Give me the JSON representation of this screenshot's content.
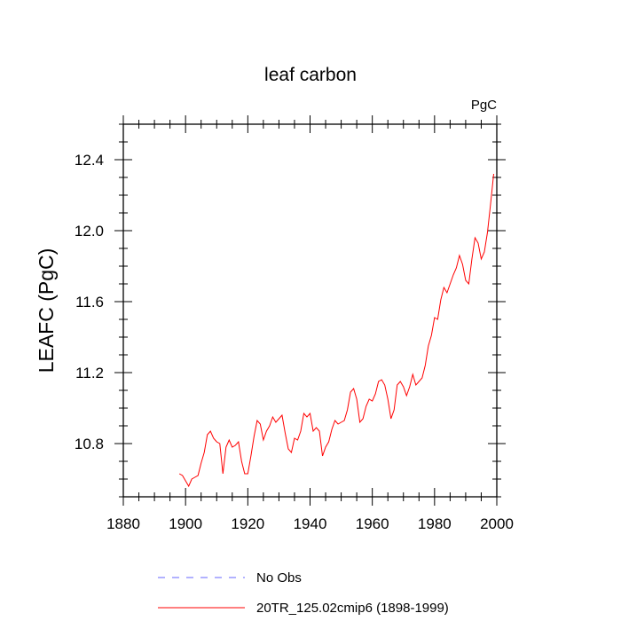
{
  "chart_data": {
    "type": "line",
    "title": "leaf carbon",
    "units": "PgC",
    "ylabel": "LEAFC  (PgC)",
    "xlabel": "",
    "xlim": [
      1880,
      2000
    ],
    "ylim": [
      10.5,
      12.6
    ],
    "xticks": [
      1880,
      1900,
      1920,
      1940,
      1960,
      1980,
      2000
    ],
    "yticks": [
      10.8,
      11.2,
      11.6,
      12.0,
      12.4
    ],
    "grid": false,
    "legend_position": "bottom",
    "series": [
      {
        "name": "No Obs",
        "color": "#6666ff",
        "dash": true,
        "x": [],
        "y": []
      },
      {
        "name": "20TR_125.02cmip6 (1898-1999)",
        "color": "#ff0000",
        "dash": false,
        "x": [
          1898,
          1899,
          1900,
          1901,
          1902,
          1903,
          1904,
          1905,
          1906,
          1907,
          1908,
          1909,
          1910,
          1911,
          1912,
          1913,
          1914,
          1915,
          1916,
          1917,
          1918,
          1919,
          1920,
          1921,
          1922,
          1923,
          1924,
          1925,
          1926,
          1927,
          1928,
          1929,
          1930,
          1931,
          1932,
          1933,
          1934,
          1935,
          1936,
          1937,
          1938,
          1939,
          1940,
          1941,
          1942,
          1943,
          1944,
          1945,
          1946,
          1947,
          1948,
          1949,
          1950,
          1951,
          1952,
          1953,
          1954,
          1955,
          1956,
          1957,
          1958,
          1959,
          1960,
          1961,
          1962,
          1963,
          1964,
          1965,
          1966,
          1967,
          1968,
          1969,
          1970,
          1971,
          1972,
          1973,
          1974,
          1975,
          1976,
          1977,
          1978,
          1979,
          1980,
          1981,
          1982,
          1983,
          1984,
          1985,
          1986,
          1987,
          1988,
          1989,
          1990,
          1991,
          1992,
          1993,
          1994,
          1995,
          1996,
          1997,
          1998,
          1999
        ],
        "y": [
          10.63,
          10.62,
          10.59,
          10.56,
          10.6,
          10.61,
          10.62,
          10.69,
          10.75,
          10.85,
          10.87,
          10.83,
          10.81,
          10.8,
          10.63,
          10.78,
          10.82,
          10.78,
          10.79,
          10.81,
          10.7,
          10.63,
          10.63,
          10.73,
          10.84,
          10.93,
          10.91,
          10.82,
          10.87,
          10.9,
          10.95,
          10.92,
          10.94,
          10.96,
          10.86,
          10.77,
          10.75,
          10.83,
          10.82,
          10.87,
          10.97,
          10.95,
          10.97,
          10.87,
          10.89,
          10.87,
          10.73,
          10.78,
          10.81,
          10.88,
          10.93,
          10.91,
          10.92,
          10.93,
          10.99,
          11.09,
          11.11,
          11.05,
          10.92,
          10.94,
          11.01,
          11.05,
          11.04,
          11.08,
          11.15,
          11.16,
          11.13,
          11.05,
          10.94,
          10.99,
          11.13,
          11.15,
          11.12,
          11.07,
          11.12,
          11.19,
          11.13,
          11.15,
          11.17,
          11.24,
          11.35,
          11.41,
          11.51,
          11.5,
          11.61,
          11.68,
          11.65,
          11.7,
          11.75,
          11.79,
          11.86,
          11.81,
          11.72,
          11.7,
          11.84,
          11.96,
          11.93,
          11.84,
          11.88,
          11.99,
          12.15,
          12.32
        ]
      }
    ]
  }
}
